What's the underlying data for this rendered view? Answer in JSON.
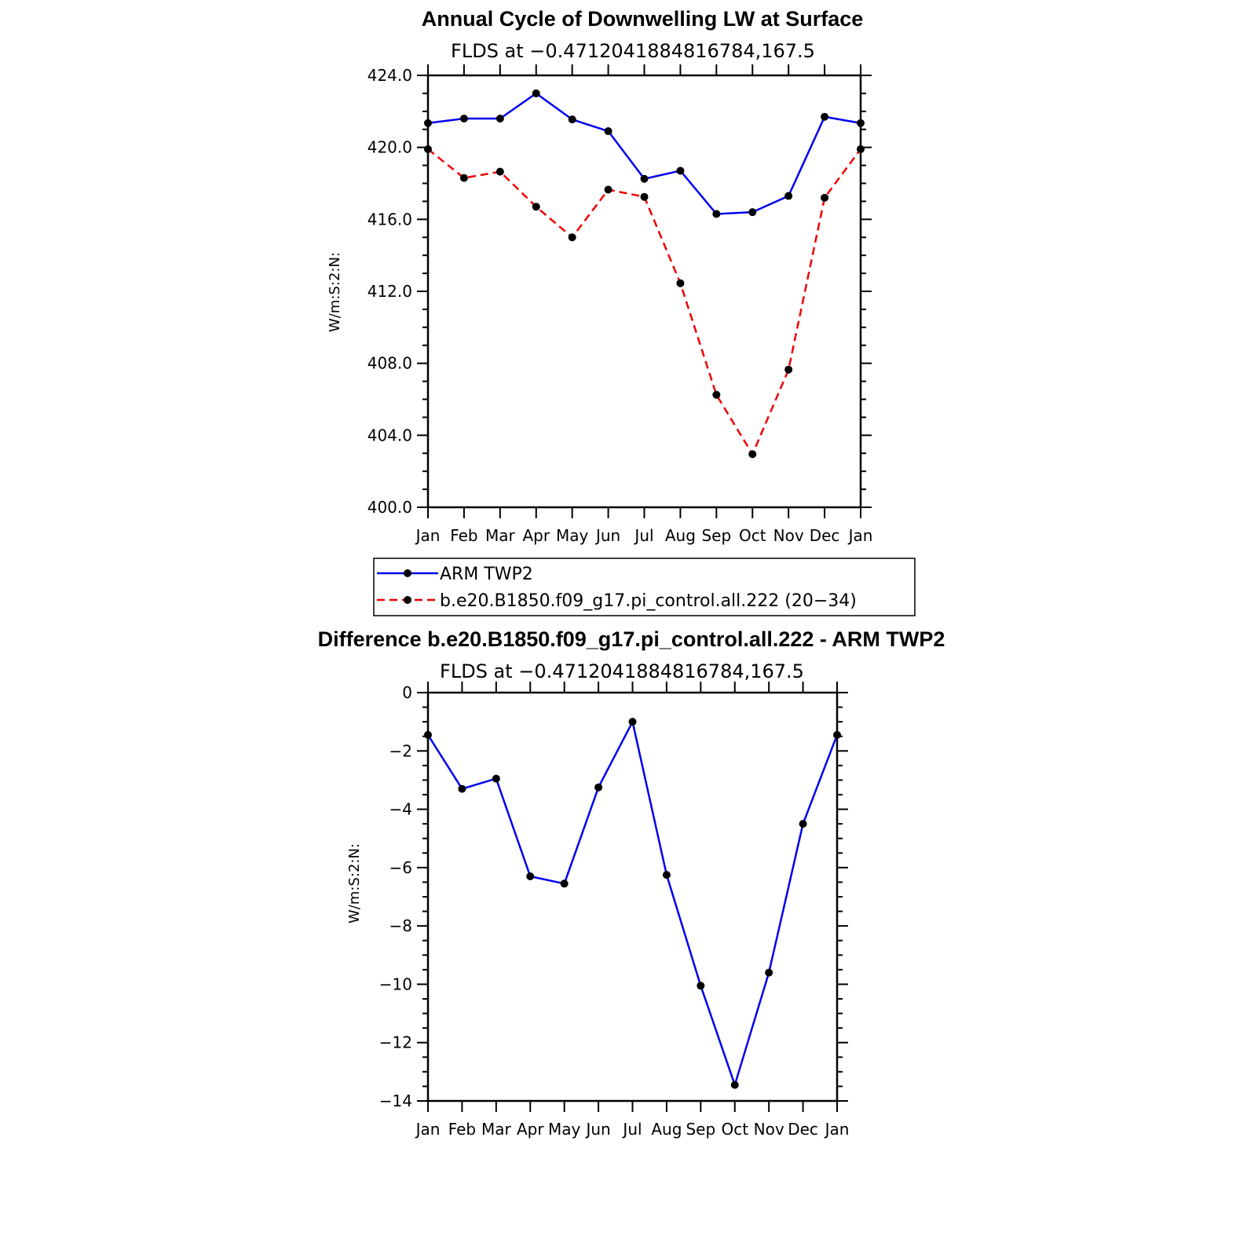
{
  "chart_data": [
    {
      "type": "line",
      "title": "Annual Cycle of Downwelling LW at Surface",
      "subtitle": "FLDS at −0.4712041884816784,167.5",
      "xlabel": "",
      "ylabel": "W/m:S:2:N:",
      "categories": [
        "Jan",
        "Feb",
        "Mar",
        "Apr",
        "May",
        "Jun",
        "Jul",
        "Aug",
        "Sep",
        "Oct",
        "Nov",
        "Dec",
        "Jan"
      ],
      "ylim": [
        400,
        424
      ],
      "yticks": [
        400,
        404,
        408,
        412,
        416,
        420,
        424
      ],
      "ytick_labels": [
        "400.0",
        "404.0",
        "408.0",
        "412.0",
        "416.0",
        "420.0",
        "424.0"
      ],
      "series": [
        {
          "name": "ARM TWP2",
          "color": "#0000ee",
          "dash": "solid",
          "values": [
            421.35,
            421.6,
            421.6,
            423.0,
            421.55,
            420.9,
            418.25,
            418.7,
            416.3,
            416.4,
            417.3,
            421.7,
            421.35
          ]
        },
        {
          "name": "b.e20.B1850.f09_g17.pi_control.all.222 (20−34)",
          "color": "#ee0000",
          "dash": "dashed",
          "values": [
            419.9,
            418.3,
            418.65,
            416.7,
            415.0,
            417.65,
            417.25,
            412.45,
            406.25,
            402.95,
            407.65,
            417.2,
            419.9
          ]
        }
      ],
      "legend_position": "bottom"
    },
    {
      "type": "line",
      "title": "Difference b.e20.B1850.f09_g17.pi_control.all.222 - ARM TWP2",
      "subtitle": "FLDS at −0.4712041884816784,167.5",
      "xlabel": "",
      "ylabel": "W/m:S:2:N:",
      "categories": [
        "Jan",
        "Feb",
        "Mar",
        "Apr",
        "May",
        "Jun",
        "Jul",
        "Aug",
        "Sep",
        "Oct",
        "Nov",
        "Dec",
        "Jan"
      ],
      "ylim": [
        -14,
        0
      ],
      "yticks": [
        -14,
        -12,
        -10,
        -8,
        -6,
        -4,
        -2,
        0
      ],
      "ytick_labels": [
        "−14",
        "−12",
        "−10",
        "−8",
        "−6",
        "−4",
        "−2",
        "0"
      ],
      "series": [
        {
          "name": "Difference",
          "color": "#0000ee",
          "dash": "solid",
          "values": [
            -1.45,
            -3.3,
            -2.95,
            -6.3,
            -6.55,
            -3.25,
            -1.0,
            -6.25,
            -10.05,
            -13.45,
            -9.6,
            -4.5,
            -1.45
          ]
        }
      ]
    }
  ]
}
